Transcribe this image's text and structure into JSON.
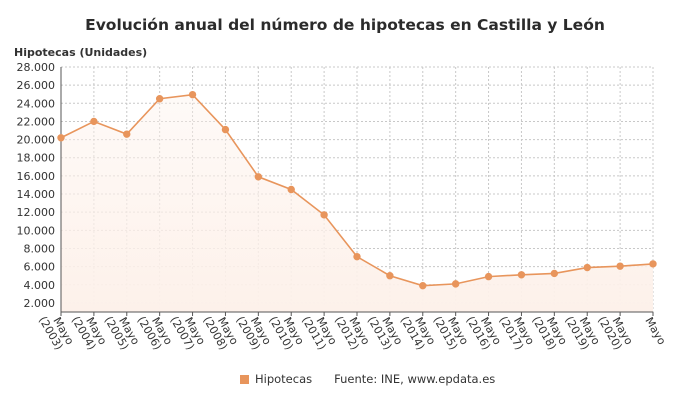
{
  "title": "Evolución anual del número de hipotecas en Castilla y León",
  "chart_data": {
    "type": "area",
    "ylabel": "Hipotecas (Unidades)",
    "ylim": [
      1000,
      28000
    ],
    "y_ticks": [
      "2.000",
      "4.000",
      "6.000",
      "8.000",
      "10.000",
      "12.000",
      "14.000",
      "16.000",
      "18.000",
      "20.000",
      "22.000",
      "24.000",
      "26.000",
      "28.000"
    ],
    "y_tick_values": [
      2000,
      4000,
      6000,
      8000,
      10000,
      12000,
      14000,
      16000,
      18000,
      20000,
      22000,
      24000,
      26000,
      28000
    ],
    "categories": [
      "Mayo (2003)",
      "Mayo (2004)",
      "Mayo (2005)",
      "Mayo (2006)",
      "Mayo (2007)",
      "Mayo (2008)",
      "Mayo (2009)",
      "Mayo (2010)",
      "Mayo (2011)",
      "Mayo (2012)",
      "Mayo (2013)",
      "Mayo (2014)",
      "Mayo (2015)",
      "Mayo (2016)",
      "Mayo (2017)",
      "Mayo (2018)",
      "Mayo (2019)",
      "Mayo (2020)",
      "Mayo"
    ],
    "series": [
      {
        "name": "Hipotecas",
        "values": [
          20200,
          22000,
          20600,
          24500,
          24950,
          21100,
          15900,
          14500,
          11700,
          7100,
          5000,
          3900,
          4100,
          4900,
          5100,
          5250,
          5900,
          6050,
          6300
        ]
      }
    ],
    "grid": true,
    "legend_position": "bottom"
  },
  "colors": {
    "line": "#e8955c",
    "fill": "#fdf1ea",
    "grid": "#c8c8c8"
  },
  "legend": {
    "label": "Hipotecas"
  },
  "source": "Fuente: INE, www.epdata.es"
}
